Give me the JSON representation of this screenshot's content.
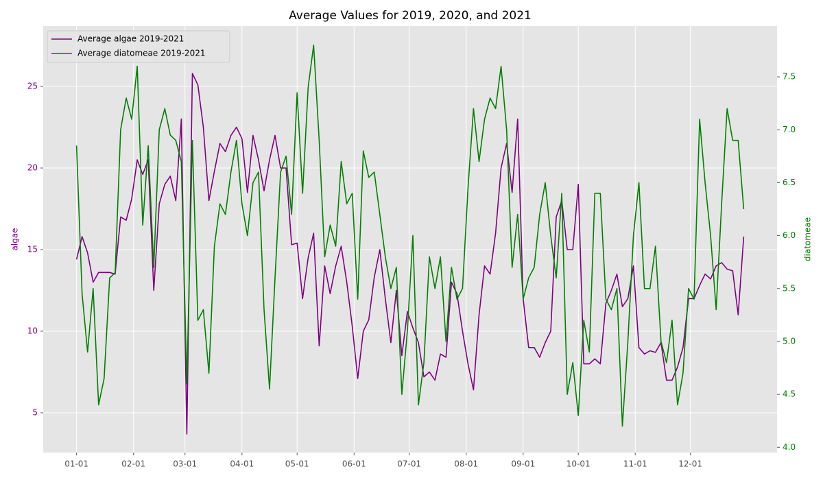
{
  "chart_data": {
    "type": "line",
    "title": "Average Values for 2019, 2020, and 2021",
    "y_label": "algae",
    "y2_label": "diatomeae",
    "x": [
      "01-01",
      "01-04",
      "01-07",
      "01-10",
      "01-13",
      "01-16",
      "01-19",
      "01-22",
      "01-25",
      "01-28",
      "01-31",
      "02-03",
      "02-06",
      "02-09",
      "02-12",
      "02-15",
      "02-18",
      "02-21",
      "02-24",
      "02-27",
      "03-02",
      "03-05",
      "03-08",
      "03-11",
      "03-14",
      "03-17",
      "03-20",
      "03-23",
      "03-26",
      "03-29",
      "04-01",
      "04-04",
      "04-07",
      "04-10",
      "04-13",
      "04-16",
      "04-19",
      "04-22",
      "04-25",
      "04-28",
      "05-01",
      "05-04",
      "05-07",
      "05-10",
      "05-13",
      "05-16",
      "05-19",
      "05-22",
      "05-25",
      "05-28",
      "05-31",
      "06-03",
      "06-06",
      "06-09",
      "06-12",
      "06-15",
      "06-18",
      "06-21",
      "06-24",
      "06-27",
      "06-30",
      "07-03",
      "07-06",
      "07-09",
      "07-12",
      "07-15",
      "07-18",
      "07-21",
      "07-24",
      "07-27",
      "07-30",
      "08-02",
      "08-05",
      "08-08",
      "08-11",
      "08-14",
      "08-17",
      "08-20",
      "08-23",
      "08-26",
      "08-29",
      "09-01",
      "09-04",
      "09-07",
      "09-10",
      "09-13",
      "09-16",
      "09-19",
      "09-22",
      "09-25",
      "09-28",
      "10-01",
      "10-04",
      "10-07",
      "10-10",
      "10-13",
      "10-16",
      "10-19",
      "10-22",
      "10-25",
      "10-28",
      "10-31",
      "11-03",
      "11-06",
      "11-09",
      "11-12",
      "11-15",
      "11-18",
      "11-21",
      "11-24",
      "11-27",
      "11-30",
      "12-03",
      "12-06",
      "12-09",
      "12-12",
      "12-15",
      "12-18",
      "12-21",
      "12-24",
      "12-27",
      "12-30"
    ],
    "series": [
      {
        "name": "Average algae 2019-2021",
        "color": "#800080",
        "axis": "y",
        "values": [
          14.4,
          15.8,
          14.8,
          13.0,
          13.6,
          13.6,
          13.6,
          13.5,
          17,
          16.8,
          18.1,
          20.5,
          19.6,
          20.5,
          12.5,
          17.8,
          19,
          19.5,
          18,
          23,
          3.7,
          25.8,
          25.1,
          22.5,
          18,
          19.8,
          21.5,
          21,
          22,
          22.5,
          21.8,
          18.5,
          22,
          20.5,
          18.6,
          20.5,
          22,
          20,
          20,
          15.3,
          15.4,
          12,
          14.5,
          16,
          9.1,
          14,
          12.3,
          14,
          15.2,
          13,
          10.3,
          7.1,
          10,
          10.7,
          13.3,
          15,
          12,
          9.3,
          12.5,
          8.5,
          11.2,
          10.2,
          9.3,
          7.2,
          7.5,
          7.0,
          8.6,
          8.4,
          13,
          12.3,
          10,
          8,
          6.4,
          11,
          14,
          13.5,
          16,
          20,
          21.5,
          18.5,
          23,
          12,
          9,
          9,
          8.4,
          9.3,
          10,
          17,
          18,
          15,
          15,
          19,
          8,
          8,
          8.3,
          8.0,
          11.7,
          12.5,
          13.5,
          11.5,
          12,
          14,
          9,
          8.6,
          8.8,
          8.7,
          9.3,
          7.0,
          7.0,
          7.8,
          9,
          12,
          12,
          12.8,
          13.5,
          13.2,
          14,
          14.2,
          13.8,
          13.7,
          11,
          15.8
        ]
      },
      {
        "name": "Average diatomeae 2019-2021",
        "color": "#008000",
        "axis": "y2",
        "values": [
          6.85,
          5.45,
          4.9,
          5.5,
          4.4,
          4.65,
          5.6,
          5.65,
          7.0,
          7.3,
          7.1,
          7.6,
          6.1,
          6.85,
          5.7,
          7.0,
          7.2,
          6.95,
          6.9,
          6.7,
          4.6,
          6.9,
          5.2,
          5.3,
          4.7,
          5.9,
          6.3,
          6.2,
          6.6,
          6.9,
          6.3,
          6.0,
          6.5,
          6.6,
          5.3,
          4.55,
          5.6,
          6.6,
          6.75,
          6.2,
          7.35,
          6.4,
          7.4,
          7.8,
          6.9,
          5.8,
          6.1,
          5.9,
          6.7,
          6.3,
          6.4,
          5.4,
          6.8,
          6.55,
          6.6,
          6.2,
          5.8,
          5.5,
          5.7,
          4.5,
          5.1,
          6.0,
          4.4,
          4.8,
          5.8,
          5.5,
          5.8,
          5.0,
          5.7,
          5.4,
          5.5,
          6.45,
          7.2,
          6.7,
          7.1,
          7.3,
          7.2,
          7.6,
          7.0,
          5.7,
          6.2,
          5.4,
          5.6,
          5.7,
          6.2,
          6.5,
          6.0,
          5.6,
          6.4,
          4.5,
          4.8,
          4.3,
          5.2,
          4.9,
          6.4,
          6.4,
          5.4,
          5.3,
          5.5,
          4.2,
          5.0,
          6.0,
          6.5,
          5.5,
          5.5,
          5.9,
          5.0,
          4.8,
          5.2,
          4.4,
          4.7,
          5.5,
          5.4,
          7.1,
          6.5,
          6.0,
          5.3,
          6.3,
          7.2,
          6.9,
          6.9,
          6.25
        ]
      }
    ],
    "xticks": [
      "01-01",
      "02-01",
      "03-01",
      "04-01",
      "05-01",
      "06-01",
      "07-01",
      "08-01",
      "09-01",
      "10-01",
      "11-01",
      "12-01"
    ],
    "ylim": [
      2.56,
      28.7
    ],
    "yticks": [
      5,
      10,
      15,
      20,
      25
    ],
    "y2lim": [
      3.95,
      7.98
    ],
    "y2ticks": [
      {
        "value": 4,
        "label": "4.0"
      },
      4.5,
      {
        "value": 5,
        "label": "5.0"
      },
      5.5,
      {
        "value": 6,
        "label": "6.0"
      },
      6.5,
      {
        "value": 7,
        "label": "7.0"
      },
      7.5
    ],
    "grid": true,
    "legend": "upper left"
  }
}
